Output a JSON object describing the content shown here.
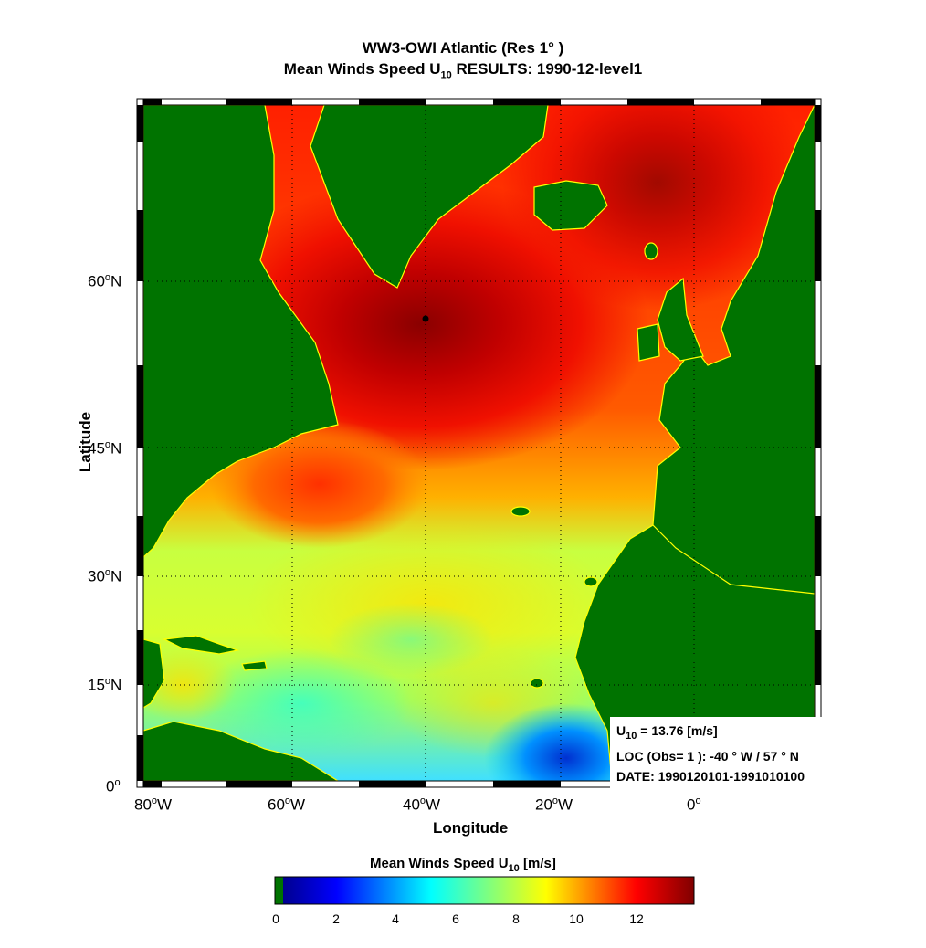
{
  "title": {
    "line1": "WW3-OWI Atlantic  (Res 1° )",
    "line2_prefix": "Mean Winds   Speed U",
    "line2_sub": "10",
    "line2_suffix": "   RESULTS:   1990-12-level1"
  },
  "axes": {
    "xlabel": "Longitude",
    "ylabel": "Latitude",
    "lat_ticks": [
      {
        "deg": "0",
        "suffix": ""
      },
      {
        "deg": "15",
        "suffix": "N"
      },
      {
        "deg": "30",
        "suffix": "N"
      },
      {
        "deg": "45",
        "suffix": "N"
      },
      {
        "deg": "60",
        "suffix": "N"
      }
    ],
    "lon_ticks": [
      {
        "deg": "80",
        "suffix": "W"
      },
      {
        "deg": "60",
        "suffix": "W"
      },
      {
        "deg": "40",
        "suffix": "W"
      },
      {
        "deg": "20",
        "suffix": "W"
      },
      {
        "deg": "0",
        "suffix": ""
      }
    ],
    "lon_range": [
      -82,
      12
    ],
    "lat_range": [
      0,
      72
    ]
  },
  "info": {
    "value_prefix": "U",
    "value_sub": "10",
    "value_text": "  = 13.76 [m/s]",
    "loc_text": "LOC (Obs= 1 ):  -40 ° W / 57 ° N",
    "date_text": "DATE: 1990120101-1991010100"
  },
  "marker": {
    "lon": -40,
    "lat": 57
  },
  "colorbar": {
    "label_prefix": "Mean Winds   Speed U",
    "label_sub": "10",
    "label_suffix": "   [m/s]",
    "ticks": [
      "0",
      "2",
      "4",
      "6",
      "8",
      "10",
      "12"
    ],
    "range": [
      0,
      13.76
    ]
  },
  "colors": {
    "land": "#007300",
    "coast": "#ffff00",
    "max_wind": "#800000",
    "min_wind": "#00008f"
  },
  "chart_data": {
    "type": "heatmap",
    "variable": "Mean Winds Speed U10",
    "units": "m/s",
    "value_at_marker": 13.76,
    "hotspots": [
      {
        "lon": -40,
        "lat": 57,
        "value": 13.76
      },
      {
        "lon": -20,
        "lat": 55,
        "value": 12
      },
      {
        "lon": -55,
        "lat": 40,
        "value": 11
      },
      {
        "lon": 0,
        "lat": 68,
        "value": 12
      },
      {
        "lon": -40,
        "lat": 25,
        "value": 8
      },
      {
        "lon": -60,
        "lat": 20,
        "value": 6
      },
      {
        "lon": -20,
        "lat": 3,
        "value": 4
      },
      {
        "lon": -75,
        "lat": 15,
        "value": 9
      }
    ]
  }
}
